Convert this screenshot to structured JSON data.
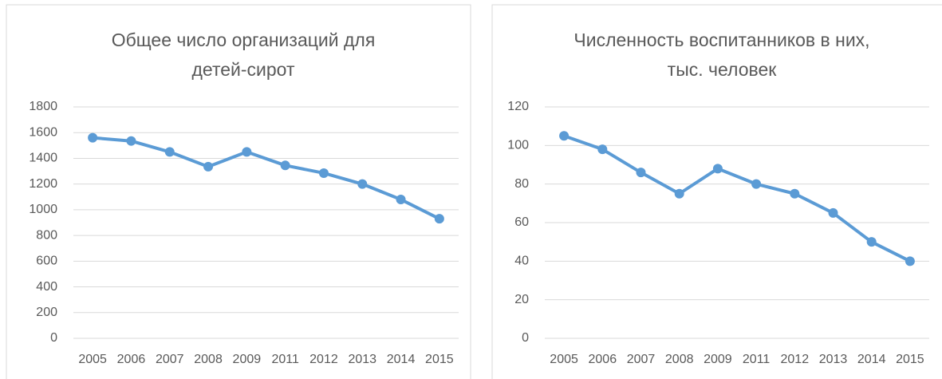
{
  "chart_data": [
    {
      "type": "line",
      "title": "Общее число организаций для детей-сирот",
      "categories": [
        "2005",
        "2006",
        "2007",
        "2008",
        "2009",
        "2011",
        "2012",
        "2013",
        "2014",
        "2015"
      ],
      "series": [
        {
          "color": "#5b9bd5",
          "values": [
            1560,
            1535,
            1450,
            1335,
            1450,
            1345,
            1285,
            1200,
            1080,
            930
          ]
        }
      ],
      "ylim": [
        0,
        1800
      ],
      "yticks": [
        0,
        200,
        400,
        600,
        800,
        1000,
        1200,
        1400,
        1600,
        1800
      ],
      "grid": true
    },
    {
      "type": "line",
      "title": "Численность воспитанников в них, тыс. человек",
      "categories": [
        "2005",
        "2006",
        "2007",
        "2008",
        "2009",
        "2011",
        "2012",
        "2013",
        "2014",
        "2015"
      ],
      "series": [
        {
          "color": "#5b9bd5",
          "values": [
            105,
            98,
            86,
            75,
            88,
            80,
            75,
            65,
            50,
            40
          ]
        }
      ],
      "ylim": [
        0,
        120
      ],
      "yticks": [
        0,
        20,
        40,
        60,
        80,
        100,
        120
      ],
      "grid": true
    }
  ]
}
